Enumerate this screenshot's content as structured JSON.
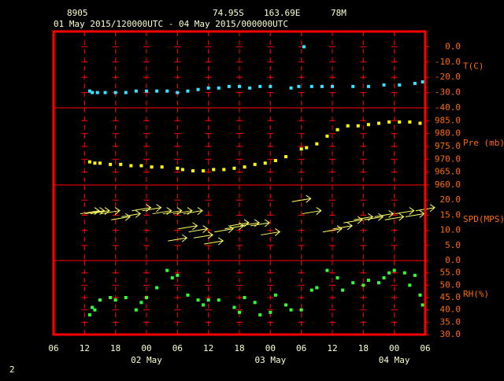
{
  "header": {
    "station": "8905",
    "lat": "74.95S",
    "lon": "163.69E",
    "elev": "78M",
    "period": "01 May 2015/120000UTC - 04 May 2015/000000UTC"
  },
  "footer": "2",
  "chart_data": [
    {
      "type": "scatter",
      "ylabel": "T(C)",
      "color": "#33e6ff",
      "xlim": [
        0,
        72
      ],
      "ylim": [
        -40,
        10
      ],
      "yticks": [
        {
          "value": 0,
          "label": "0.0"
        },
        {
          "value": -10,
          "label": "-10.0"
        },
        {
          "value": -20,
          "label": "-20.0"
        },
        {
          "value": -30,
          "label": "-30.0"
        },
        {
          "value": -40,
          "label": "-40.0"
        }
      ],
      "x": [
        7,
        7.5,
        8.5,
        10,
        12,
        14,
        16,
        18,
        20,
        22,
        24,
        26,
        28,
        30,
        32,
        34,
        36,
        38,
        40,
        42,
        46,
        47.5,
        48.5,
        50,
        52,
        54,
        58,
        61,
        64,
        67,
        70,
        71.5
      ],
      "values": [
        -29,
        -30,
        -30,
        -30,
        -30,
        -30,
        -29,
        -29,
        -29,
        -29,
        -30,
        -29,
        -28,
        -27,
        -27,
        -26,
        -26,
        -27,
        -26,
        -26,
        -27,
        -26,
        0,
        -26,
        -26,
        -26,
        -26,
        -26,
        -25,
        -25,
        -24,
        -23
      ]
    },
    {
      "type": "scatter",
      "ylabel": "Pre (mb)",
      "color": "#ffff00",
      "xlim": [
        0,
        72
      ],
      "ylim": [
        960,
        990
      ],
      "yticks": [
        {
          "value": 985,
          "label": "985.0"
        },
        {
          "value": 980,
          "label": "980.0"
        },
        {
          "value": 975,
          "label": "975.0"
        },
        {
          "value": 970,
          "label": "970.0"
        },
        {
          "value": 965,
          "label": "965.0"
        },
        {
          "value": 960,
          "label": "960.0"
        }
      ],
      "x": [
        7,
        8,
        9,
        11,
        13,
        15,
        17,
        19,
        21,
        24,
        25,
        27,
        29,
        31,
        33,
        35,
        37,
        39,
        41,
        43,
        45,
        48,
        49,
        51,
        53,
        55,
        57,
        59,
        61,
        63,
        65,
        67,
        69,
        71
      ],
      "values": [
        969,
        968.5,
        968.5,
        968,
        968,
        967.5,
        967.5,
        967,
        967,
        966.5,
        966,
        965.5,
        965.5,
        966,
        966,
        966.5,
        967,
        968,
        968.5,
        969.5,
        971,
        974,
        974.5,
        976,
        979,
        981.5,
        983,
        983,
        983.5,
        984,
        984.5,
        984.5,
        984.5,
        984
      ]
    },
    {
      "type": "vector",
      "ylabel": "SPD(MPS)",
      "color": "#ffff66",
      "xlim": [
        0,
        72
      ],
      "ylim": [
        0,
        25
      ],
      "yticks": [
        {
          "value": 20,
          "label": "20.0"
        },
        {
          "value": 15,
          "label": "15.0"
        },
        {
          "value": 10,
          "label": "10.0"
        },
        {
          "value": 5,
          "label": "5.0"
        },
        {
          "value": 0,
          "label": "0.0"
        }
      ],
      "x": [
        7,
        8,
        9,
        11,
        13,
        15,
        17,
        19,
        21,
        23,
        25,
        27,
        24,
        26,
        28,
        29,
        31,
        33,
        35,
        36,
        38,
        40,
        42,
        48,
        50,
        54,
        56,
        58,
        60,
        62,
        64,
        66,
        68,
        70,
        72
      ],
      "values": [
        16,
        16,
        16,
        16,
        14,
        15,
        17,
        17,
        16,
        16,
        16,
        16,
        7,
        11,
        10,
        8,
        6,
        10,
        11,
        12,
        12,
        12,
        9,
        20,
        16,
        10,
        11,
        13,
        14,
        14,
        15,
        14,
        16,
        15,
        17
      ]
    },
    {
      "type": "scatter",
      "ylabel": "RH(%)",
      "color": "#33ff33",
      "xlim": [
        0,
        72
      ],
      "ylim": [
        30,
        60
      ],
      "yticks": [
        {
          "value": 55,
          "label": "55.0"
        },
        {
          "value": 50,
          "label": "50.0"
        },
        {
          "value": 45,
          "label": "45.0"
        },
        {
          "value": 40,
          "label": "40.0"
        },
        {
          "value": 35,
          "label": "35.0"
        },
        {
          "value": 30,
          "label": "30.0"
        }
      ],
      "x": [
        7,
        7.5,
        8,
        9,
        11,
        12,
        14,
        16,
        17,
        18,
        20,
        22,
        23,
        24,
        26,
        28,
        29,
        30,
        32,
        35,
        36,
        37,
        39,
        40,
        42,
        43,
        45,
        46,
        48,
        50,
        51,
        53,
        55,
        56,
        58,
        60,
        61,
        63,
        64,
        65,
        66,
        68,
        69,
        70,
        71,
        71.5
      ],
      "values": [
        38,
        41,
        40,
        44,
        45,
        44,
        45,
        40,
        43,
        45,
        49,
        56,
        53,
        54,
        46,
        44,
        42,
        44,
        44,
        41,
        39,
        45,
        43,
        38,
        39,
        46,
        42,
        40,
        40,
        48,
        49,
        56,
        53,
        48,
        51,
        50,
        52,
        51,
        53,
        55,
        56,
        55,
        50,
        54,
        46,
        42
      ],
      "xticks": [
        {
          "value": 0,
          "label": "06"
        },
        {
          "value": 6,
          "label": "12"
        },
        {
          "value": 12,
          "label": "18"
        },
        {
          "value": 18,
          "label": "00"
        },
        {
          "value": 24,
          "label": "06"
        },
        {
          "value": 30,
          "label": "12"
        },
        {
          "value": 36,
          "label": "18"
        },
        {
          "value": 42,
          "label": "00"
        },
        {
          "value": 48,
          "label": "06"
        },
        {
          "value": 54,
          "label": "12"
        },
        {
          "value": 60,
          "label": "18"
        },
        {
          "value": 66,
          "label": "00"
        },
        {
          "value": 72,
          "label": "06"
        }
      ],
      "day_labels": [
        {
          "value": 18,
          "label": "02 May"
        },
        {
          "value": 42,
          "label": "03 May"
        },
        {
          "value": 66,
          "label": "04 May"
        }
      ]
    }
  ]
}
